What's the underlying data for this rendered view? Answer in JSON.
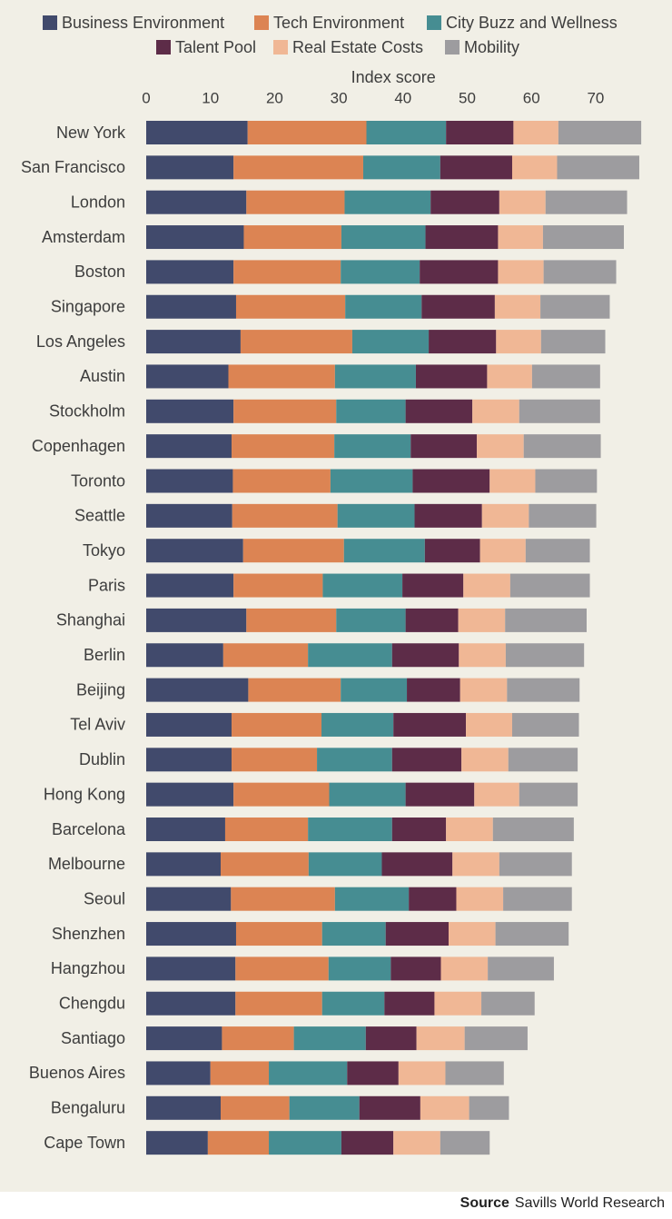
{
  "chart_data": {
    "type": "bar",
    "orientation": "horizontal",
    "stacked": true,
    "xlabel": "Index score",
    "xlim": [
      0,
      75
    ],
    "xticks": [
      0,
      10,
      20,
      30,
      40,
      50,
      60,
      70
    ],
    "legend_position": "top",
    "grid": false,
    "categories": [
      "New York",
      "San Francisco",
      "London",
      "Amsterdam",
      "Boston",
      "Singapore",
      "Los Angeles",
      "Austin",
      "Stockholm",
      "Copenhagen",
      "Toronto",
      "Seattle",
      "Tokyo",
      "Paris",
      "Shanghai",
      "Berlin",
      "Beijing",
      "Tel Aviv",
      "Dublin",
      "Hong Kong",
      "Barcelona",
      "Melbourne",
      "Seoul",
      "Shenzhen",
      "Hangzhou",
      "Chengdu",
      "Santiago",
      "Buenos Aires",
      "Bengaluru",
      "Cape Town"
    ],
    "series": [
      {
        "name": "Business Environment",
        "color": "#414a6c",
        "values": [
          15.8,
          13.6,
          15.6,
          15.2,
          13.6,
          14.0,
          14.7,
          12.8,
          13.6,
          13.3,
          13.5,
          13.4,
          15.1,
          13.6,
          15.6,
          12.0,
          15.9,
          13.3,
          13.3,
          13.6,
          12.3,
          11.6,
          13.2,
          14.0,
          13.9,
          13.9,
          11.8,
          10.0,
          11.6,
          9.6
        ]
      },
      {
        "name": "Tech Environment",
        "color": "#dc8453",
        "values": [
          18.5,
          20.2,
          15.3,
          15.2,
          16.7,
          17.0,
          17.4,
          16.6,
          16.0,
          16.0,
          15.2,
          16.4,
          15.7,
          13.9,
          14.0,
          13.2,
          14.4,
          14.0,
          13.3,
          14.9,
          12.9,
          13.7,
          16.2,
          13.4,
          14.5,
          13.5,
          11.2,
          9.1,
          10.7,
          9.5
        ]
      },
      {
        "name": "City Buzz and Wellness",
        "color": "#468d92",
        "values": [
          12.4,
          12.0,
          13.4,
          13.1,
          12.3,
          11.9,
          11.9,
          12.6,
          10.8,
          11.9,
          12.8,
          12.0,
          12.6,
          12.4,
          10.8,
          13.1,
          10.3,
          11.2,
          11.7,
          11.9,
          13.1,
          11.4,
          11.5,
          9.9,
          9.7,
          9.7,
          11.2,
          12.2,
          10.9,
          11.3
        ]
      },
      {
        "name": "Talent Pool",
        "color": "#5d2c48",
        "values": [
          10.5,
          11.2,
          10.7,
          11.3,
          12.2,
          11.4,
          10.5,
          11.1,
          10.4,
          10.3,
          12.0,
          10.5,
          8.6,
          9.5,
          8.2,
          10.4,
          8.3,
          11.3,
          10.8,
          10.7,
          8.4,
          11.0,
          7.4,
          9.8,
          7.8,
          7.8,
          7.9,
          8.0,
          9.5,
          8.1
        ]
      },
      {
        "name": "Real Estate Costs",
        "color": "#f0b795",
        "values": [
          7.0,
          7.0,
          7.2,
          7.0,
          7.1,
          7.1,
          7.0,
          7.0,
          7.3,
          7.3,
          7.1,
          7.3,
          7.1,
          7.3,
          7.3,
          7.3,
          7.3,
          7.2,
          7.3,
          7.0,
          7.3,
          7.3,
          7.3,
          7.3,
          7.3,
          7.3,
          7.5,
          7.3,
          7.6,
          7.3
        ]
      },
      {
        "name": "Mobility",
        "color": "#9d9c9f",
        "values": [
          12.9,
          12.8,
          12.7,
          12.6,
          11.3,
          10.8,
          10.0,
          10.6,
          12.6,
          12.0,
          9.6,
          10.5,
          10.0,
          12.4,
          12.7,
          12.2,
          11.3,
          10.4,
          10.8,
          9.1,
          12.6,
          11.3,
          10.7,
          11.4,
          10.3,
          8.3,
          9.8,
          9.1,
          6.2,
          7.7
        ]
      }
    ]
  },
  "source": {
    "label": "Source",
    "text": "Savills World Research"
  }
}
